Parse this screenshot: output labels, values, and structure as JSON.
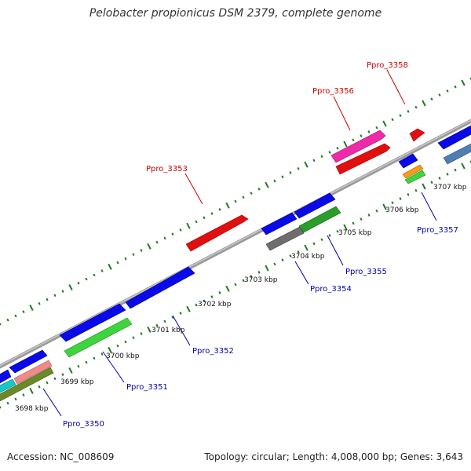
{
  "title": "Pelobacter propionicus DSM 2379, complete genome",
  "footer": {
    "accession": "Accession: NC_008609",
    "summary": "Topology: circular; Length: 4,008,000 bp; Genes: 3,643"
  },
  "colors": {
    "backbone": "#8a8a8a",
    "tick": "#1e7a1e",
    "forward_label": "#cc0000",
    "reverse_label": "#0000aa"
  },
  "kbp_labels": [
    "3698 kbp",
    "3699 kbp",
    "3700 kbp",
    "3701 kbp",
    "3702 kbp",
    "3703 kbp",
    "3704 kbp",
    "3705 kbp",
    "3706 kbp",
    "3707 kbp"
  ],
  "gene_labels": [
    {
      "id": "Ppro_3350",
      "strand": "reverse"
    },
    {
      "id": "Ppro_3351",
      "strand": "reverse"
    },
    {
      "id": "Ppro_3352",
      "strand": "reverse"
    },
    {
      "id": "Ppro_3353",
      "strand": "forward"
    },
    {
      "id": "Ppro_3354",
      "strand": "reverse"
    },
    {
      "id": "Ppro_3355",
      "strand": "reverse"
    },
    {
      "id": "Ppro_3356",
      "strand": "forward"
    },
    {
      "id": "Ppro_3357",
      "strand": "reverse"
    },
    {
      "id": "Ppro_3358",
      "strand": "forward"
    }
  ]
}
